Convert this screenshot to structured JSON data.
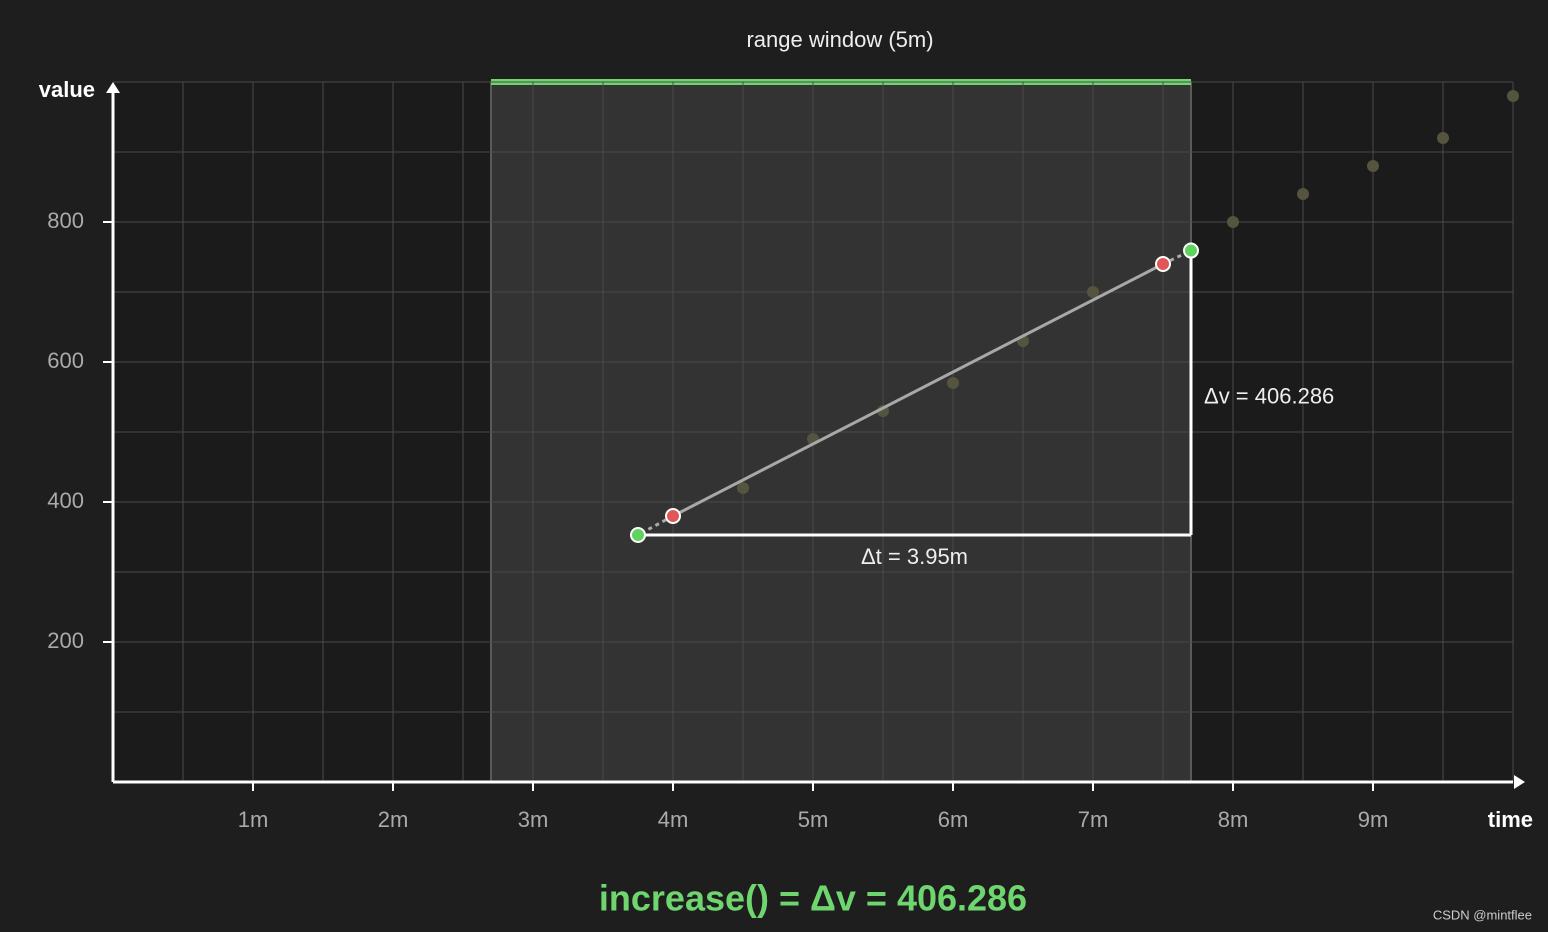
{
  "chart_data": {
    "type": "scatter",
    "title": "range window (5m)",
    "x_label": "time",
    "y_label": "value",
    "xlim": [
      0,
      10
    ],
    "ylim": [
      0,
      1000
    ],
    "xticks": [
      {
        "value": 1,
        "label": "1m"
      },
      {
        "value": 2,
        "label": "2m"
      },
      {
        "value": 3,
        "label": "3m"
      },
      {
        "value": 4,
        "label": "4m"
      },
      {
        "value": 5,
        "label": "5m"
      },
      {
        "value": 6,
        "label": "6m"
      },
      {
        "value": 7,
        "label": "7m"
      },
      {
        "value": 8,
        "label": "8m"
      },
      {
        "value": 9,
        "label": "9m"
      }
    ],
    "yticks": [
      200,
      400,
      600,
      800
    ],
    "x_grid": [
      0.5,
      1,
      1.5,
      2,
      2.5,
      3,
      3.5,
      4,
      4.5,
      5,
      5.5,
      6,
      6.5,
      7,
      7.5,
      8,
      8.5,
      9,
      9.5,
      10
    ],
    "y_grid": [
      100,
      200,
      300,
      400,
      500,
      600,
      700,
      800,
      900,
      1000
    ],
    "window": [
      2.7,
      7.7
    ],
    "window_color": "#6fd66f",
    "series": [
      {
        "color": "#55553f",
        "x": [
          4.5,
          5,
          5.5,
          6,
          6.5,
          7,
          8,
          8.5,
          9,
          9.5,
          10
        ],
        "values": [
          420,
          490,
          530,
          570,
          630,
          700,
          800,
          840,
          880,
          920,
          980
        ]
      },
      {
        "color": "#e05757",
        "x": [
          4,
          7.5
        ],
        "values": [
          380,
          740
        ]
      },
      {
        "color": "#5fd35f",
        "x": [
          3.75,
          7.7
        ],
        "values": [
          352.9,
          759.2
        ]
      }
    ],
    "delta_t_label": "Δt = 3.95m",
    "delta_v_label": "Δv = 406.286",
    "formula": "increase() = Δv = 406.286",
    "watermark": "CSDN @mintflee"
  }
}
